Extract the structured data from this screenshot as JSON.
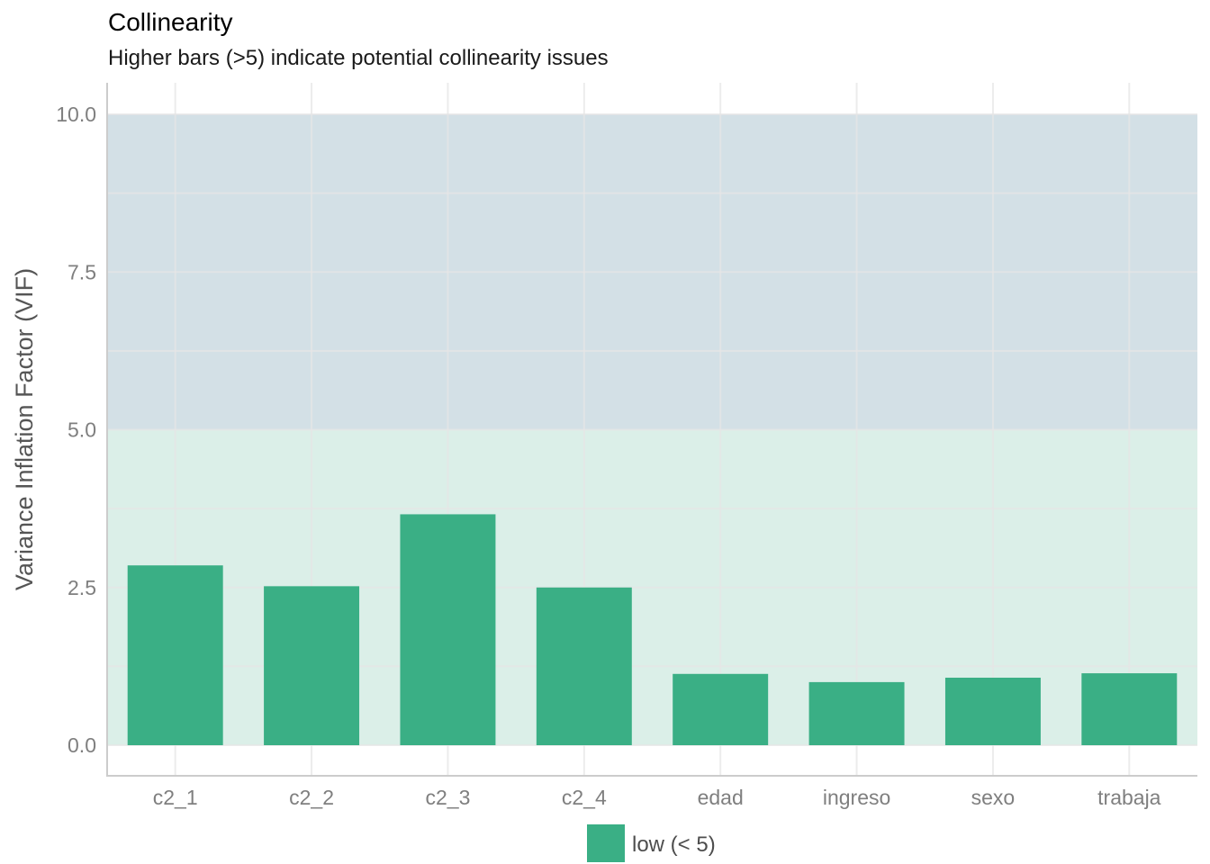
{
  "chart_data": {
    "type": "bar",
    "title": "Collinearity",
    "subtitle": "Higher bars (>5) indicate potential collinearity issues",
    "xlabel": "",
    "ylabel": "Variance Inflation Factor (VIF)",
    "categories": [
      "c2_1",
      "c2_2",
      "c2_3",
      "c2_4",
      "edad",
      "ingreso",
      "sexo",
      "trabaja"
    ],
    "series": [
      {
        "name": "low (< 5)",
        "values": [
          2.85,
          2.52,
          3.66,
          2.5,
          1.13,
          1.0,
          1.07,
          1.14
        ]
      }
    ],
    "ylim": [
      -0.5,
      10.5
    ],
    "yticks": [
      0.0,
      2.5,
      5.0,
      7.5,
      10.0
    ],
    "ytick_labels": [
      "0.0",
      "2.5",
      "5.0",
      "7.5",
      "10.0"
    ],
    "grid": true,
    "legend_position": "bottom",
    "bands": [
      {
        "from": 0,
        "to": 5,
        "color": "#dbefe8"
      },
      {
        "from": 5,
        "to": 10,
        "color": "#d3e0e6"
      }
    ],
    "colors": {
      "bar": "#3aaf85",
      "grid": "#e5e5e5",
      "axis": "#cccccc"
    }
  }
}
